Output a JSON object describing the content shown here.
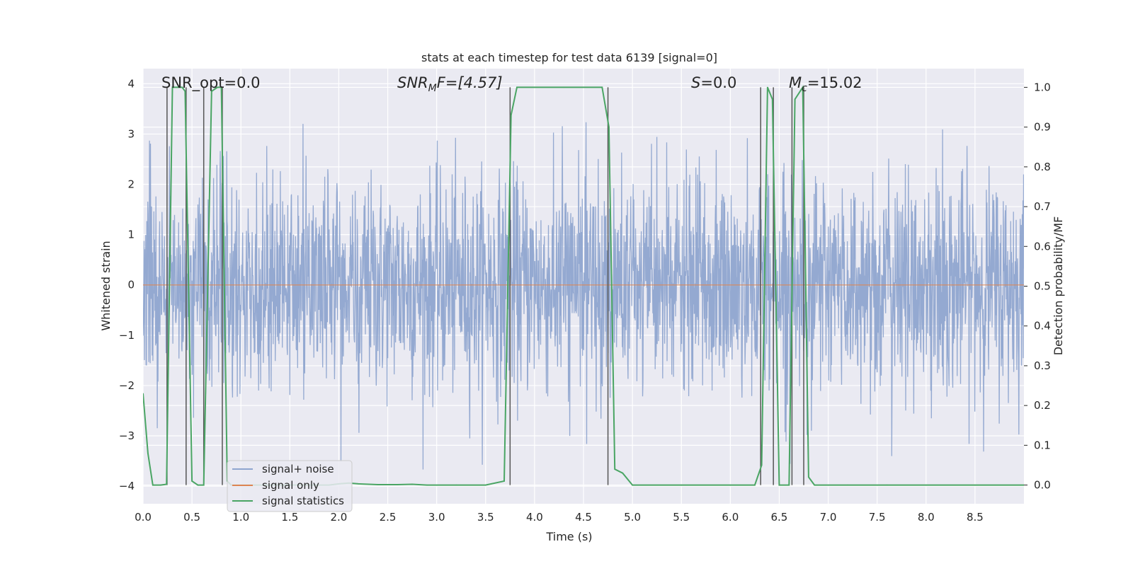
{
  "chart_data": {
    "type": "line",
    "title": "stats at each timestep for test data 6139 [signal=0]",
    "xlabel": "Time (s)",
    "ylabel": "Whitened strain",
    "y2label": "Detection probability/MF",
    "xlim": [
      0.0,
      9.0
    ],
    "ylim": [
      -4.35,
      4.3
    ],
    "y2lim": [
      -0.047,
      1.047
    ],
    "xticks": [
      "0.0",
      "0.5",
      "1.0",
      "1.5",
      "2.0",
      "2.5",
      "3.0",
      "3.5",
      "4.0",
      "4.5",
      "5.0",
      "5.5",
      "6.0",
      "6.5",
      "7.0",
      "7.5",
      "8.0",
      "8.5"
    ],
    "yticks": [
      "4",
      "3",
      "2",
      "1",
      "0",
      "−1",
      "−2",
      "−3",
      "−4"
    ],
    "y2ticks": [
      "1.0",
      "0.9",
      "0.8",
      "0.7",
      "0.6",
      "0.5",
      "0.4",
      "0.3",
      "0.2",
      "0.1",
      "0.0"
    ],
    "grid": true,
    "legend_placement": "lower-left",
    "annotations": {
      "snr_opt": "SNR_opt=0.0",
      "snr_mf_base": "SNR",
      "snr_mf_sub": "M",
      "snr_mf_rest": "F=[4.57]",
      "s_label": "S",
      "s_value": "=0.0",
      "mc_base": "M",
      "mc_sub": "c",
      "mc_value": "=15.02"
    },
    "series": [
      {
        "name": "signal+ noise",
        "color": "#8fa5cf",
        "noise_envelope": {
          "amplitude_typical": 1.7,
          "amplitude_peak": 3.3
        }
      },
      {
        "name": "signal only",
        "color": "#dd8452",
        "values_constant": 0.0
      },
      {
        "name": "signal statistics",
        "color": "#4aa564",
        "x": [
          0.0,
          0.05,
          0.1,
          0.18,
          0.24,
          0.3,
          0.4,
          0.43,
          0.5,
          0.56,
          0.62,
          0.7,
          0.76,
          0.8,
          0.86,
          0.9,
          1.0,
          1.3,
          1.6,
          1.9,
          2.0,
          2.1,
          2.2,
          2.4,
          2.6,
          2.75,
          2.9,
          3.2,
          3.5,
          3.69,
          3.76,
          3.82,
          4.0,
          4.3,
          4.69,
          4.76,
          4.82,
          4.9,
          5.0,
          5.5,
          6.0,
          6.25,
          6.32,
          6.38,
          6.43,
          6.5,
          6.6,
          6.66,
          6.74,
          6.8,
          6.86,
          7.2,
          7.6,
          8.0,
          8.5,
          9.0
        ],
        "values": [
          0.23,
          0.08,
          0.0,
          0.0,
          0.002,
          1.0,
          1.0,
          0.99,
          0.01,
          0.0,
          0.0,
          0.99,
          1.0,
          1.0,
          0.01,
          0.0,
          0.0,
          0.0,
          0.0,
          0.0,
          0.003,
          0.005,
          0.003,
          0.001,
          0.001,
          0.002,
          0.0,
          0.0,
          0.0,
          0.01,
          0.93,
          1.0,
          1.0,
          1.0,
          1.0,
          0.9,
          0.04,
          0.03,
          0.0,
          0.0,
          0.0,
          0.0,
          0.05,
          1.0,
          0.97,
          0.0,
          0.0,
          0.97,
          1.0,
          0.02,
          0.0,
          0.0,
          0.0,
          0.0,
          0.0,
          0.0
        ]
      },
      {
        "name": "",
        "color": "#555555",
        "type": "vlines",
        "x": [
          0.245,
          0.44,
          0.62,
          0.81,
          3.75,
          4.75,
          6.31,
          6.44,
          6.63,
          6.75
        ]
      }
    ]
  }
}
